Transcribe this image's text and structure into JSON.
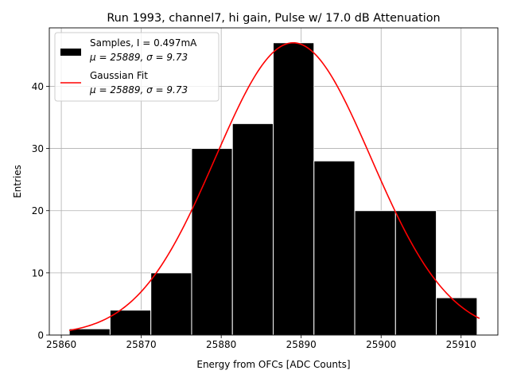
{
  "chart_data": {
    "type": "bar",
    "title": "Run 1993, channel7, hi gain, Pulse w/ 17.0 dB Attenuation",
    "xlabel": "Energy from OFCs [ADC Counts]",
    "ylabel": "Entries",
    "xlim": [
      25858.5,
      25914.6
    ],
    "ylim": [
      0,
      49.4
    ],
    "xticks": [
      "25860",
      "25870",
      "25880",
      "25890",
      "25900",
      "25910"
    ],
    "xtick_values": [
      25860,
      25870,
      25880,
      25890,
      25900,
      25910
    ],
    "yticks": [
      "0",
      "10",
      "20",
      "30",
      "40"
    ],
    "ytick_values": [
      0,
      10,
      20,
      30,
      40
    ],
    "grid": true,
    "legend_position": "top-left",
    "bins": [
      {
        "x0": 25861.0,
        "x1": 25866.1,
        "count": 1
      },
      {
        "x0": 25866.1,
        "x1": 25871.2,
        "count": 4
      },
      {
        "x0": 25871.2,
        "x1": 25876.3,
        "count": 10
      },
      {
        "x0": 25876.3,
        "x1": 25881.4,
        "count": 30
      },
      {
        "x0": 25881.4,
        "x1": 25886.5,
        "count": 34
      },
      {
        "x0": 25886.5,
        "x1": 25891.6,
        "count": 47
      },
      {
        "x0": 25891.6,
        "x1": 25896.7,
        "count": 28
      },
      {
        "x0": 25896.7,
        "x1": 25901.8,
        "count": 20
      },
      {
        "x0": 25901.8,
        "x1": 25906.9,
        "count": 20
      },
      {
        "x0": 25906.9,
        "x1": 25912.0,
        "count": 6
      }
    ],
    "fit": {
      "mu": 25889,
      "sigma": 9.73,
      "amplitude": 47,
      "x_range": [
        25861.0,
        25912.3
      ]
    },
    "series": [
      {
        "name": "Samples, I = 0.497mA",
        "stats": "μ = 25889, σ = 9.73",
        "color": "#000000"
      },
      {
        "name": "Gaussian Fit",
        "stats": "μ = 25889, σ = 9.73",
        "color": "#ff0000"
      }
    ]
  }
}
